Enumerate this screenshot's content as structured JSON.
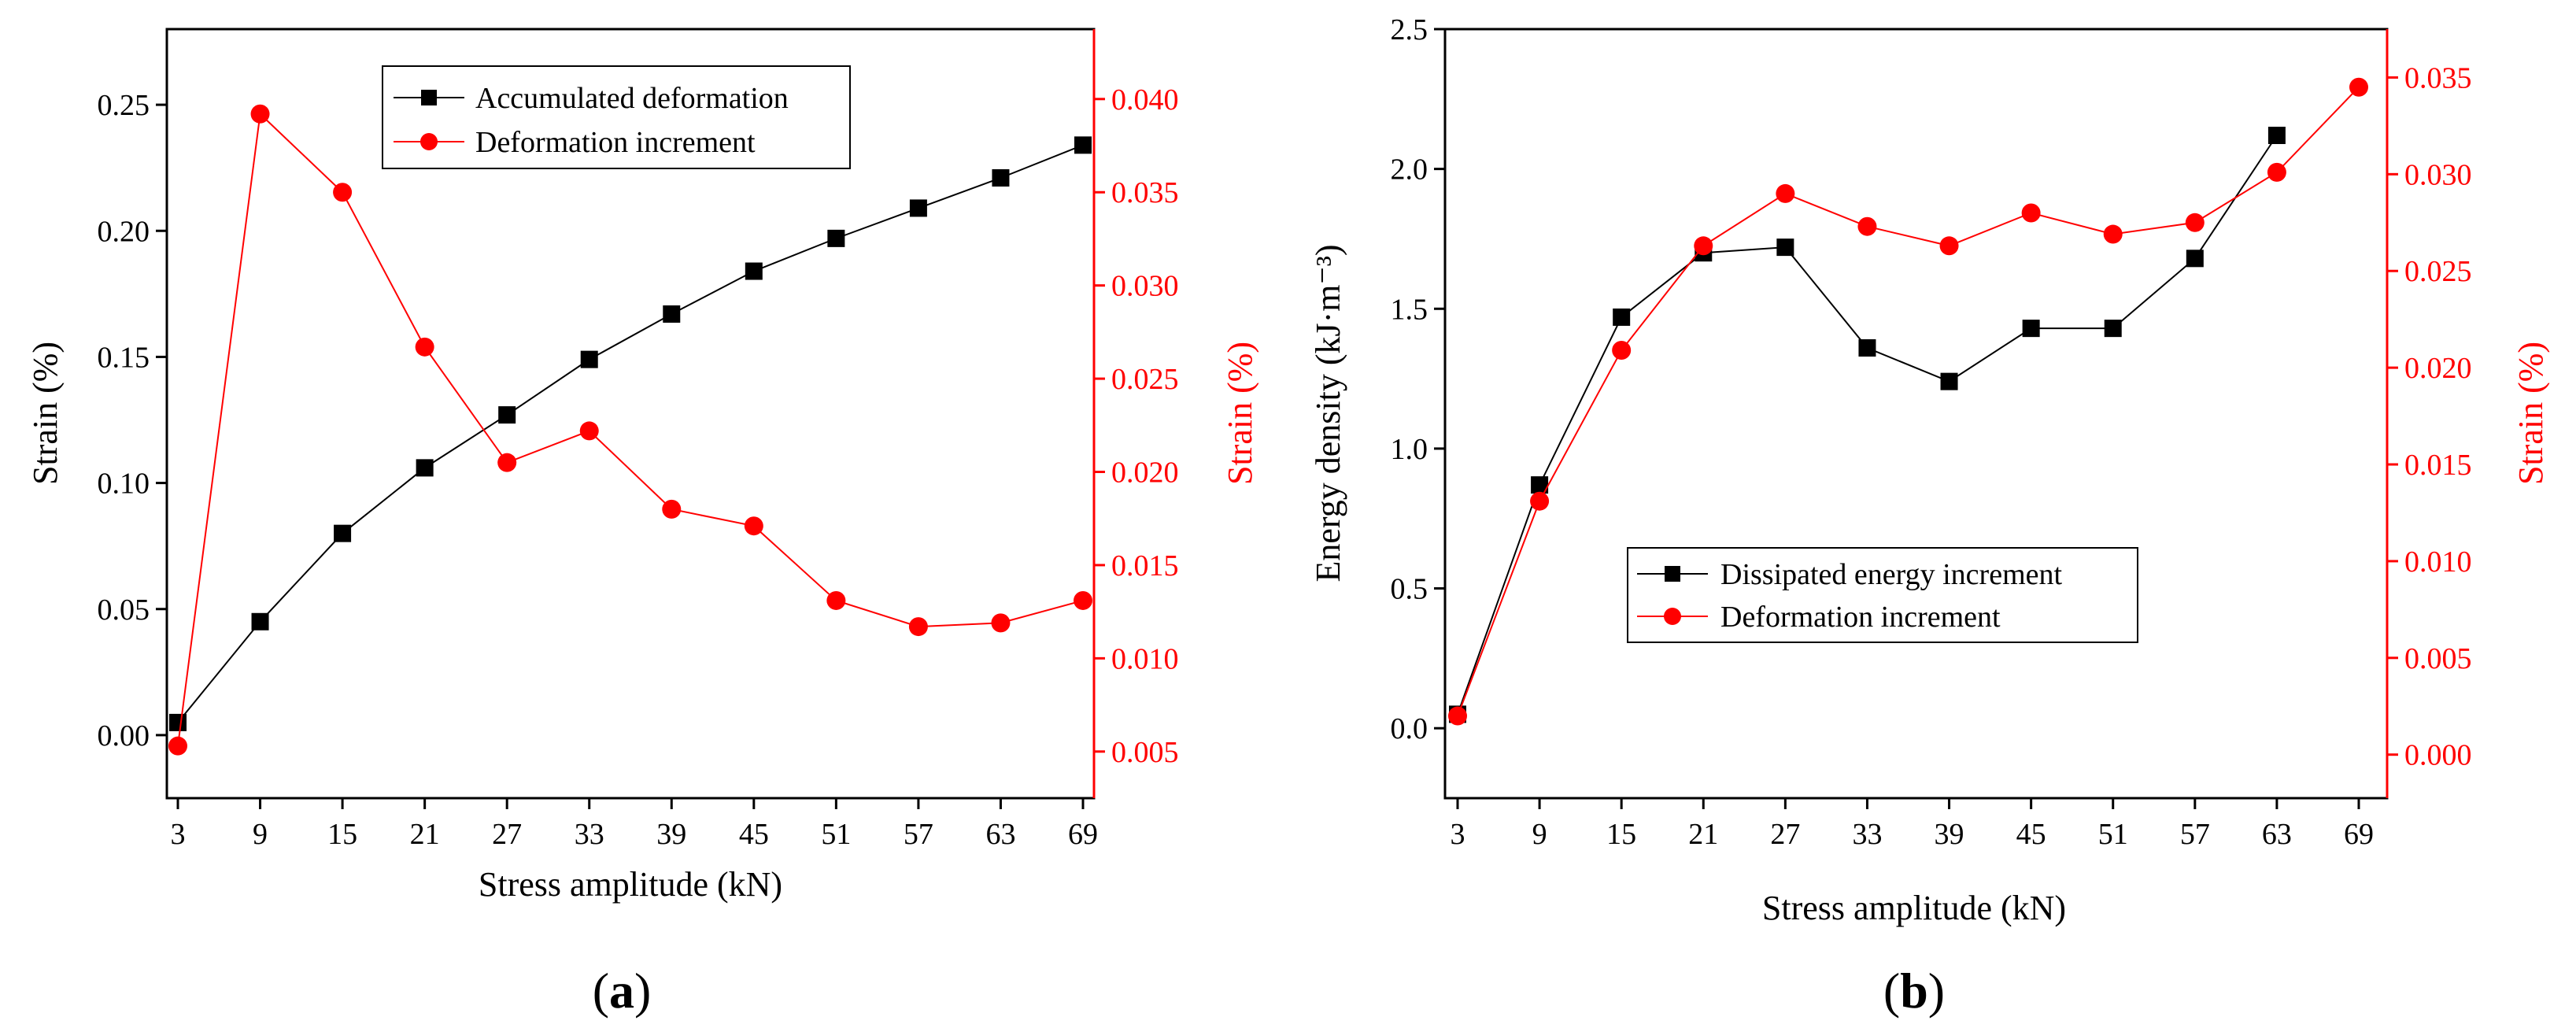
{
  "colors": {
    "black": "#000000",
    "red": "#ff0000"
  },
  "chart_data": [
    {
      "type": "line",
      "panel_label": "a",
      "xlabel": "Stress amplitude (kN)",
      "ylabel_left": "Strain (%)",
      "ylabel_right": "Strain (%)",
      "x": [
        3,
        9,
        15,
        21,
        27,
        33,
        39,
        45,
        51,
        57,
        63,
        69
      ],
      "x_ticks": [
        "3",
        "9",
        "15",
        "21",
        "27",
        "33",
        "39",
        "45",
        "51",
        "57",
        "63",
        "69"
      ],
      "ylim_left": [
        -0.025,
        0.28
      ],
      "ylim_right": [
        0.0025,
        0.04375
      ],
      "yticks_left": [
        "0.00",
        "0.05",
        "0.10",
        "0.15",
        "0.20",
        "0.25"
      ],
      "yticks_right": [
        "0.005",
        "0.010",
        "0.015",
        "0.020",
        "0.025",
        "0.030",
        "0.035",
        "0.040"
      ],
      "series": [
        {
          "name": "Accumulated deformation",
          "axis": "left",
          "color": "#000000",
          "marker": "square",
          "values": [
            0.005,
            0.045,
            0.08,
            0.106,
            0.127,
            0.149,
            0.167,
            0.184,
            0.197,
            0.209,
            0.221,
            0.234
          ]
        },
        {
          "name": "Deformation increment",
          "axis": "right",
          "color": "#ff0000",
          "marker": "circle",
          "values": [
            0.0053,
            0.0392,
            0.035,
            0.0267,
            0.0205,
            0.0222,
            0.018,
            0.0171,
            0.0131,
            0.0117,
            0.0119,
            0.0131
          ]
        }
      ],
      "legend": "top-center"
    },
    {
      "type": "line",
      "panel_label": "b",
      "xlabel": "Stress amplitude (kN)",
      "ylabel_left": "Energy density (kJ·m⁻³)",
      "ylabel_right": "Strain (%)",
      "x": [
        3,
        9,
        15,
        21,
        27,
        33,
        39,
        45,
        51,
        57,
        63,
        69
      ],
      "x_ticks": [
        "3",
        "9",
        "15",
        "21",
        "27",
        "33",
        "39",
        "45",
        "51",
        "57",
        "63",
        "69"
      ],
      "ylim_left": [
        -0.25,
        2.5
      ],
      "ylim_right": [
        -0.00225,
        0.0375
      ],
      "yticks_left": [
        "0.0",
        "0.5",
        "1.0",
        "1.5",
        "2.0",
        "2.5"
      ],
      "yticks_right": [
        "0.000",
        "0.005",
        "0.010",
        "0.015",
        "0.020",
        "0.025",
        "0.030",
        "0.035"
      ],
      "series": [
        {
          "name": "Dissipated energy increment",
          "axis": "left",
          "color": "#000000",
          "marker": "square",
          "x": [
            3,
            9,
            15,
            21,
            27,
            33,
            39,
            45,
            51,
            57,
            63
          ],
          "values": [
            0.05,
            0.87,
            1.47,
            1.7,
            1.72,
            1.36,
            1.24,
            1.43,
            1.43,
            1.68,
            2.12
          ]
        },
        {
          "name": "Deformation increment",
          "axis": "right",
          "color": "#ff0000",
          "marker": "circle",
          "values": [
            0.002,
            0.0131,
            0.0209,
            0.0263,
            0.029,
            0.0273,
            0.0263,
            0.028,
            0.0269,
            0.0275,
            0.0301,
            0.0345
          ]
        }
      ],
      "legend": "center"
    }
  ]
}
